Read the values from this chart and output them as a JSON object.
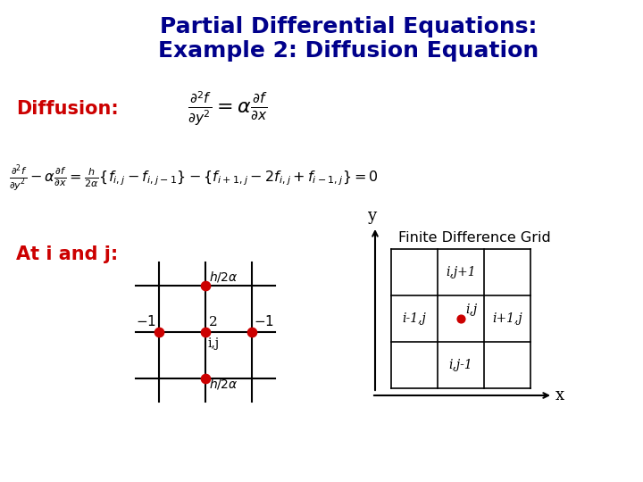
{
  "title_line1": "Partial Differential Equations:",
  "title_line2": "Example 2: Diffusion Equation",
  "title_color": "#00008B",
  "bg_color": "#FFFFFF",
  "diffusion_label": "Diffusion:",
  "label_color": "#CC0000",
  "at_ij_label": "At i and j:",
  "grid_label": "Finite Difference Grid",
  "y_label": "y",
  "x_label": "x",
  "dot_color": "#CC0000",
  "title_fontsize": 18,
  "label_fontsize": 15,
  "eq_fontsize": 13,
  "eq2_fontsize": 12
}
